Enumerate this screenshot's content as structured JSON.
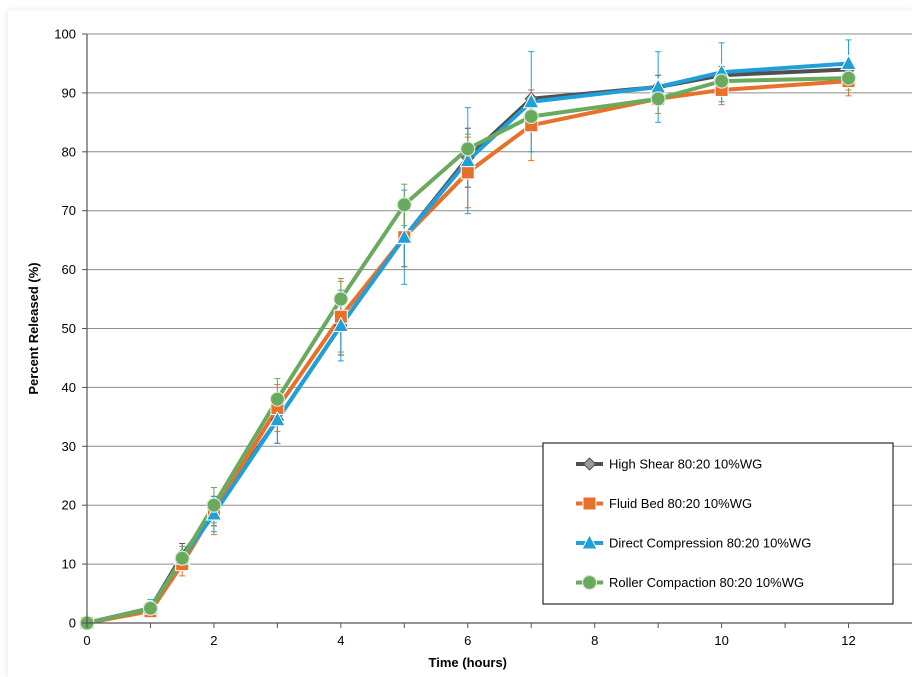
{
  "chart_data": {
    "type": "line",
    "title": "",
    "xlabel": "Time (hours)",
    "ylabel": "Percent Released (%)",
    "xlim": [
      0,
      13
    ],
    "ylim": [
      0,
      100
    ],
    "x_ticks": [
      "0",
      "2",
      "4",
      "6",
      "8",
      "10",
      "12"
    ],
    "y_ticks": [
      "0",
      "10",
      "20",
      "30",
      "40",
      "50",
      "60",
      "70",
      "80",
      "90",
      "100"
    ],
    "grid": "horizontal",
    "legend_position": "lower-right",
    "x": [
      0,
      1,
      1.5,
      2,
      3,
      4,
      5,
      6,
      7,
      9,
      10,
      12
    ],
    "series": [
      {
        "name": "High Shear 80:20 10%WG",
        "color": "#505050",
        "marker": "diamond",
        "values": [
          0,
          2.5,
          11.5,
          19,
          34.5,
          50.5,
          65.5,
          79,
          89,
          91,
          93,
          94
        ],
        "errors": [
          0.5,
          1,
          2,
          2.5,
          4,
          5,
          5,
          5,
          1.5,
          2,
          1.5,
          1.5
        ]
      },
      {
        "name": "Fluid Bed 80:20 10%WG",
        "color": "#E8702A",
        "marker": "square",
        "values": [
          0,
          2,
          10,
          19,
          36.5,
          52,
          65.5,
          76.5,
          84.5,
          89,
          90.5,
          92
        ],
        "errors": [
          0.5,
          1,
          2,
          4,
          4,
          6,
          5,
          6,
          6,
          2.5,
          2.5,
          2.5
        ]
      },
      {
        "name": "Direct Compression 80:20 10%WG",
        "color": "#1FA0DA",
        "marker": "triangle",
        "values": [
          0,
          2.5,
          11,
          18.5,
          34.5,
          50.5,
          65.5,
          78.5,
          88.5,
          91,
          93.5,
          95
        ],
        "errors": [
          0.5,
          1.5,
          2,
          3,
          4,
          6,
          8,
          9,
          8.5,
          6,
          5,
          4
        ]
      },
      {
        "name": "Roller Compaction 80:20 10%WG",
        "color": "#6AAA5E",
        "marker": "circle",
        "values": [
          0,
          2.5,
          11,
          20,
          38,
          55,
          71,
          80.5,
          86,
          89,
          92,
          92.5
        ],
        "errors": [
          0.5,
          1,
          2,
          3,
          3.5,
          3.5,
          3.5,
          2.5,
          2,
          2.5,
          2,
          2
        ]
      }
    ]
  }
}
